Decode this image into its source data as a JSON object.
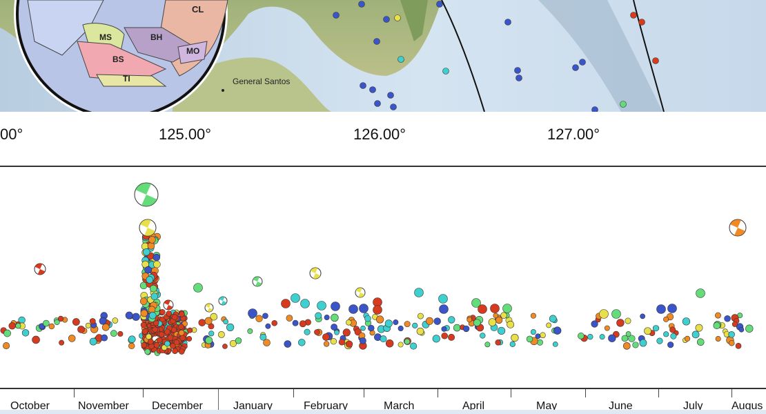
{
  "map": {
    "city_label": "General Santos",
    "inset_labels": [
      "CL",
      "MS",
      "BH",
      "BS",
      "MO",
      "TI"
    ],
    "longitude_labels": [
      "00°",
      "125.00°",
      "126.00°",
      "127.00°"
    ]
  },
  "timeline": {
    "months": [
      "October",
      "November",
      "December",
      "January",
      "February",
      "March",
      "April",
      "May",
      "June",
      "July",
      "Augus"
    ]
  },
  "colors": {
    "red": "#d63b1f",
    "orange": "#f08a24",
    "yellow": "#e8e04a",
    "green": "#64dc7a",
    "cyan": "#3fcfcf",
    "blue": "#3b55c8",
    "land": "#8fae6f",
    "sea": "#c9dced"
  }
}
